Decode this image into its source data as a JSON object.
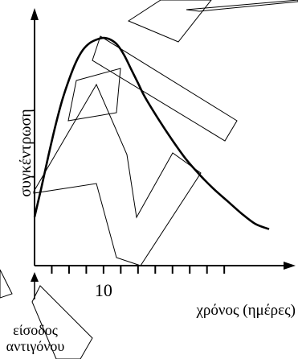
{
  "chart_data": {
    "type": "line",
    "title": "",
    "xlabel": "χρόνος (ημέρες)",
    "ylabel": "συγκέντρωση",
    "x_tick_labels": [
      {
        "x": 10,
        "label": "10"
      }
    ],
    "x_ticks": [
      2.5,
      5,
      7.5,
      10,
      12.5,
      15,
      17.5,
      20,
      22.5,
      25,
      27.5
    ],
    "xlim": [
      0,
      34
    ],
    "ylim": [
      0,
      1.25
    ],
    "grid": false,
    "annotation": {
      "lines": [
        "είσοδος",
        "αντιγόνου"
      ],
      "x": 0
    },
    "series": [
      {
        "x": [
          0,
          1,
          2,
          3,
          4,
          5,
          6,
          7,
          8,
          9,
          10,
          11,
          12,
          13,
          14,
          15,
          16,
          18,
          20,
          22,
          24,
          26,
          28,
          30,
          32,
          34
        ],
        "values": [
          0.28,
          0.45,
          0.63,
          0.8,
          0.95,
          1.07,
          1.17,
          1.24,
          1.28,
          1.3,
          1.31,
          1.3,
          1.27,
          1.21,
          1.13,
          1.05,
          0.97,
          0.84,
          0.72,
          0.61,
          0.52,
          0.44,
          0.37,
          0.3,
          0.24,
          0.21
        ]
      }
    ]
  }
}
